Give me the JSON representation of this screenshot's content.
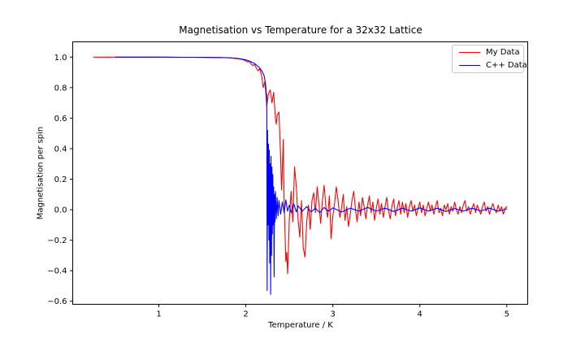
{
  "figure": {
    "title": "Magnetisation vs Temperature for a 32x32 Lattice",
    "xlabel": "Temperature / K",
    "ylabel": "Magnetisation per spin"
  },
  "legend": {
    "position": "upper right",
    "entries": [
      {
        "label": "My Data",
        "color": "#ff0000"
      },
      {
        "label": "C++ Data",
        "color": "#0000ff"
      }
    ]
  },
  "chart_data": {
    "type": "line",
    "title": "Magnetisation vs Temperature for a 32x32 Lattice",
    "xlabel": "Temperature / K",
    "ylabel": "Magnetisation per spin",
    "xlim": [
      0.01,
      5.24
    ],
    "ylim": [
      -0.62,
      1.1
    ],
    "xticks": [
      1,
      2,
      3,
      4,
      5
    ],
    "xtick_labels": [
      "1",
      "2",
      "3",
      "4",
      "5"
    ],
    "yticks": [
      1.0,
      0.8,
      0.6,
      0.4,
      0.2,
      0.0,
      -0.2,
      -0.4,
      -0.6
    ],
    "ytick_labels": [
      "1.0",
      "0.8",
      "0.6",
      "0.4",
      "0.2",
      "0.0",
      "−0.2",
      "−0.4",
      "−0.6"
    ],
    "grid": false,
    "legend_position": "upper right",
    "background": "#ffffff",
    "series": [
      {
        "name": "My Data",
        "color": "#ff0000",
        "points": [
          [
            0.25,
            1.0
          ],
          [
            0.4,
            1.0
          ],
          [
            0.6,
            1.0
          ],
          [
            0.8,
            1.0
          ],
          [
            1.0,
            1.0
          ],
          [
            1.2,
            0.999
          ],
          [
            1.4,
            0.999
          ],
          [
            1.5,
            0.998
          ],
          [
            1.6,
            0.998
          ],
          [
            1.7,
            0.997
          ],
          [
            1.75,
            0.996
          ],
          [
            1.8,
            0.995
          ],
          [
            1.85,
            0.993
          ],
          [
            1.9,
            0.99
          ],
          [
            1.95,
            0.986
          ],
          [
            2.0,
            0.975
          ],
          [
            2.02,
            0.968
          ],
          [
            2.04,
            0.972
          ],
          [
            2.06,
            0.955
          ],
          [
            2.08,
            0.945
          ],
          [
            2.1,
            0.952
          ],
          [
            2.12,
            0.93
          ],
          [
            2.14,
            0.91
          ],
          [
            2.16,
            0.925
          ],
          [
            2.18,
            0.88
          ],
          [
            2.2,
            0.8
          ],
          [
            2.22,
            0.84
          ],
          [
            2.24,
            0.68
          ],
          [
            2.26,
            0.76
          ],
          [
            2.28,
            0.785
          ],
          [
            2.3,
            0.7
          ],
          [
            2.32,
            0.77
          ],
          [
            2.34,
            0.6
          ],
          [
            2.35,
            0.56
          ],
          [
            2.36,
            0.62
          ],
          [
            2.38,
            0.64
          ],
          [
            2.4,
            0.35
          ],
          [
            2.41,
            0.13
          ],
          [
            2.42,
            0.26
          ],
          [
            2.43,
            0.46
          ],
          [
            2.44,
            0.05
          ],
          [
            2.45,
            -0.15
          ],
          [
            2.46,
            -0.34
          ],
          [
            2.47,
            -0.28
          ],
          [
            2.48,
            -0.42
          ],
          [
            2.49,
            -0.25
          ],
          [
            2.5,
            -0.06
          ],
          [
            2.52,
            0.12
          ],
          [
            2.54,
            -0.08
          ],
          [
            2.56,
            0.28
          ],
          [
            2.58,
            0.15
          ],
          [
            2.6,
            -0.06
          ],
          [
            2.62,
            -0.18
          ],
          [
            2.64,
            0.06
          ],
          [
            2.66,
            -0.25
          ],
          [
            2.68,
            -0.31
          ],
          [
            2.7,
            -0.08
          ],
          [
            2.72,
            0.03
          ],
          [
            2.74,
            -0.13
          ],
          [
            2.76,
            0.06
          ],
          [
            2.78,
            0.11
          ],
          [
            2.8,
            -0.02
          ],
          [
            2.82,
            0.15
          ],
          [
            2.84,
            0.04
          ],
          [
            2.86,
            -0.09
          ],
          [
            2.88,
            0.06
          ],
          [
            2.9,
            0.16
          ],
          [
            2.92,
            0.02
          ],
          [
            2.94,
            -0.05
          ],
          [
            2.96,
            0.09
          ],
          [
            2.98,
            -0.19
          ],
          [
            3.0,
            -0.04
          ],
          [
            3.02,
            0.04
          ],
          [
            3.04,
            0.15
          ],
          [
            3.06,
            0.06
          ],
          [
            3.08,
            -0.05
          ],
          [
            3.1,
            0.01
          ],
          [
            3.12,
            0.1
          ],
          [
            3.14,
            -0.07
          ],
          [
            3.16,
            0.02
          ],
          [
            3.18,
            -0.11
          ],
          [
            3.2,
            -0.03
          ],
          [
            3.22,
            0.06
          ],
          [
            3.24,
            0.12
          ],
          [
            3.26,
            0.0
          ],
          [
            3.28,
            -0.08
          ],
          [
            3.3,
            0.05
          ],
          [
            3.32,
            -0.04
          ],
          [
            3.34,
            0.08
          ],
          [
            3.36,
            0.02
          ],
          [
            3.38,
            -0.06
          ],
          [
            3.4,
            0.03
          ],
          [
            3.42,
            0.09
          ],
          [
            3.44,
            -0.02
          ],
          [
            3.46,
            0.05
          ],
          [
            3.48,
            -0.07
          ],
          [
            3.5,
            0.01
          ],
          [
            3.52,
            0.07
          ],
          [
            3.54,
            -0.03
          ],
          [
            3.56,
            0.04
          ],
          [
            3.58,
            -0.05
          ],
          [
            3.6,
            0.02
          ],
          [
            3.62,
            0.08
          ],
          [
            3.64,
            -0.01
          ],
          [
            3.66,
            -0.06
          ],
          [
            3.68,
            0.03
          ],
          [
            3.7,
            0.07
          ],
          [
            3.72,
            -0.04
          ],
          [
            3.74,
            0.01
          ],
          [
            3.76,
            0.06
          ],
          [
            3.78,
            -0.03
          ],
          [
            3.8,
            0.05
          ],
          [
            3.82,
            -0.02
          ],
          [
            3.84,
            0.04
          ],
          [
            3.86,
            -0.05
          ],
          [
            3.88,
            0.02
          ],
          [
            3.9,
            0.06
          ],
          [
            3.92,
            -0.01
          ],
          [
            3.94,
            0.03
          ],
          [
            3.96,
            -0.04
          ],
          [
            3.98,
            0.01
          ],
          [
            4.0,
            0.05
          ],
          [
            4.02,
            -0.02
          ],
          [
            4.04,
            0.03
          ],
          [
            4.06,
            -0.04
          ],
          [
            4.08,
            0.01
          ],
          [
            4.1,
            0.05
          ],
          [
            4.12,
            -0.01
          ],
          [
            4.14,
            0.03
          ],
          [
            4.16,
            -0.03
          ],
          [
            4.18,
            0.02
          ],
          [
            4.2,
            0.06
          ],
          [
            4.22,
            -0.02
          ],
          [
            4.24,
            0.01
          ],
          [
            4.26,
            -0.04
          ],
          [
            4.28,
            0.03
          ],
          [
            4.3,
            0.0
          ],
          [
            4.32,
            0.04
          ],
          [
            4.34,
            -0.03
          ],
          [
            4.36,
            0.02
          ],
          [
            4.38,
            -0.01
          ],
          [
            4.4,
            0.05
          ],
          [
            4.42,
            0.0
          ],
          [
            4.44,
            -0.03
          ],
          [
            4.46,
            0.02
          ],
          [
            4.48,
            -0.02
          ],
          [
            4.5,
            0.03
          ],
          [
            4.52,
            0.06
          ],
          [
            4.54,
            -0.01
          ],
          [
            4.56,
            0.02
          ],
          [
            4.58,
            -0.03
          ],
          [
            4.6,
            0.01
          ],
          [
            4.62,
            0.04
          ],
          [
            4.64,
            -0.02
          ],
          [
            4.66,
            0.03
          ],
          [
            4.68,
            0.0
          ],
          [
            4.7,
            -0.03
          ],
          [
            4.72,
            0.02
          ],
          [
            4.74,
            0.05
          ],
          [
            4.76,
            -0.01
          ],
          [
            4.78,
            0.02
          ],
          [
            4.8,
            -0.03
          ],
          [
            4.82,
            0.01
          ],
          [
            4.84,
            0.04
          ],
          [
            4.86,
            0.0
          ],
          [
            4.88,
            -0.02
          ],
          [
            4.9,
            0.03
          ],
          [
            4.92,
            -0.01
          ],
          [
            4.94,
            0.02
          ],
          [
            4.96,
            -0.03
          ],
          [
            4.98,
            0.01
          ],
          [
            5.0,
            0.02
          ]
        ]
      },
      {
        "name": "C++ Data",
        "color": "#0000ff",
        "points": [
          [
            0.5,
            1.0
          ],
          [
            0.7,
            1.0
          ],
          [
            0.9,
            1.0
          ],
          [
            1.1,
            1.0
          ],
          [
            1.3,
            0.999
          ],
          [
            1.5,
            0.999
          ],
          [
            1.6,
            0.998
          ],
          [
            1.7,
            0.997
          ],
          [
            1.8,
            0.996
          ],
          [
            1.85,
            0.994
          ],
          [
            1.9,
            0.992
          ],
          [
            1.95,
            0.988
          ],
          [
            2.0,
            0.982
          ],
          [
            2.05,
            0.972
          ],
          [
            2.1,
            0.958
          ],
          [
            2.15,
            0.935
          ],
          [
            2.18,
            0.912
          ],
          [
            2.2,
            0.892
          ],
          [
            2.21,
            0.878
          ],
          [
            2.22,
            0.848
          ],
          [
            2.23,
            0.805
          ],
          [
            2.235,
            0.76
          ],
          [
            2.24,
            0.755
          ],
          [
            2.245,
            -0.53
          ],
          [
            2.25,
            0.52
          ],
          [
            2.255,
            -0.1
          ],
          [
            2.26,
            0.43
          ],
          [
            2.265,
            -0.2
          ],
          [
            2.27,
            0.39
          ],
          [
            2.275,
            -0.35
          ],
          [
            2.28,
            0.3
          ],
          [
            2.285,
            -0.555
          ],
          [
            2.29,
            0.35
          ],
          [
            2.295,
            -0.3
          ],
          [
            2.3,
            0.28
          ],
          [
            2.305,
            -0.16
          ],
          [
            2.31,
            0.23
          ],
          [
            2.315,
            -0.1
          ],
          [
            2.32,
            0.15
          ],
          [
            2.325,
            -0.44
          ],
          [
            2.33,
            0.1
          ],
          [
            2.335,
            -0.08
          ],
          [
            2.34,
            0.12
          ],
          [
            2.35,
            -0.06
          ],
          [
            2.36,
            0.08
          ],
          [
            2.37,
            -0.04
          ],
          [
            2.38,
            0.06
          ],
          [
            2.4,
            -0.03
          ],
          [
            2.42,
            0.05
          ],
          [
            2.44,
            -0.02
          ],
          [
            2.46,
            0.065
          ],
          [
            2.48,
            -0.01
          ],
          [
            2.5,
            0.03
          ],
          [
            2.52,
            -0.02
          ],
          [
            2.55,
            0.04
          ],
          [
            2.58,
            -0.015
          ],
          [
            2.6,
            0.025
          ],
          [
            2.65,
            -0.01
          ],
          [
            2.7,
            0.02
          ],
          [
            2.75,
            -0.015
          ],
          [
            2.8,
            0.01
          ],
          [
            2.85,
            -0.02
          ],
          [
            2.9,
            0.015
          ],
          [
            2.95,
            -0.01
          ],
          [
            3.0,
            0.012
          ],
          [
            3.1,
            -0.015
          ],
          [
            3.2,
            0.01
          ],
          [
            3.3,
            -0.01
          ],
          [
            3.4,
            0.015
          ],
          [
            3.5,
            -0.01
          ],
          [
            3.6,
            0.01
          ],
          [
            3.7,
            -0.012
          ],
          [
            3.8,
            0.01
          ],
          [
            3.9,
            -0.01
          ],
          [
            4.0,
            0.012
          ],
          [
            4.1,
            -0.01
          ],
          [
            4.2,
            0.01
          ],
          [
            4.3,
            -0.012
          ],
          [
            4.4,
            0.008
          ],
          [
            4.5,
            -0.01
          ],
          [
            4.6,
            0.01
          ],
          [
            4.7,
            -0.008
          ],
          [
            4.8,
            0.01
          ],
          [
            4.9,
            -0.01
          ],
          [
            5.0,
            0.005
          ]
        ]
      }
    ]
  }
}
